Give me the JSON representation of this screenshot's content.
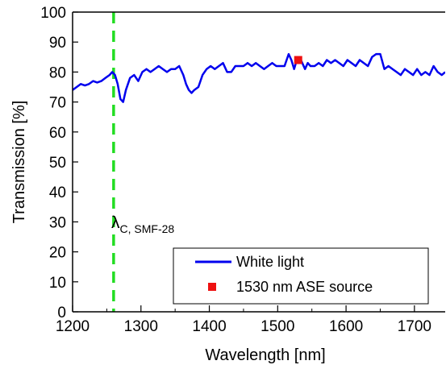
{
  "chart_data": {
    "type": "line",
    "title": "",
    "xlabel": "Wavelength [nm]",
    "ylabel": "Transmission [%]",
    "xlim": [
      1200,
      1745
    ],
    "ylim": [
      0,
      100
    ],
    "xticks": [
      1200,
      1300,
      1400,
      1500,
      1600,
      1700
    ],
    "yticks": [
      0,
      10,
      20,
      30,
      40,
      50,
      60,
      70,
      80,
      90,
      100
    ],
    "grid": false,
    "legend_position": "bottom-right",
    "series": [
      {
        "name": "White light",
        "kind": "line",
        "color": "#0000ee",
        "x": [
          1200,
          1206,
          1212,
          1218,
          1224,
          1230,
          1236,
          1242,
          1248,
          1254,
          1258,
          1262,
          1266,
          1270,
          1274,
          1278,
          1284,
          1290,
          1296,
          1302,
          1308,
          1314,
          1320,
          1326,
          1332,
          1338,
          1344,
          1350,
          1356,
          1362,
          1366,
          1370,
          1374,
          1378,
          1384,
          1390,
          1396,
          1402,
          1408,
          1414,
          1420,
          1426,
          1432,
          1438,
          1444,
          1450,
          1456,
          1462,
          1468,
          1474,
          1480,
          1486,
          1492,
          1498,
          1504,
          1510,
          1516,
          1520,
          1524,
          1528,
          1532,
          1536,
          1540,
          1544,
          1548,
          1554,
          1560,
          1566,
          1572,
          1578,
          1584,
          1590,
          1596,
          1602,
          1608,
          1614,
          1620,
          1626,
          1632,
          1638,
          1644,
          1650,
          1656,
          1662,
          1668,
          1674,
          1680,
          1686,
          1692,
          1698,
          1704,
          1710,
          1716,
          1722,
          1728,
          1734,
          1740,
          1745
        ],
        "y": [
          74,
          75,
          76,
          75.5,
          76,
          77,
          76.5,
          77,
          78,
          79,
          80,
          79,
          76,
          71,
          70,
          74,
          78,
          79,
          77,
          80,
          81,
          80,
          81,
          82,
          81,
          80,
          81,
          81,
          82,
          79,
          76,
          74,
          73,
          74,
          75,
          79,
          81,
          82,
          81,
          82,
          83,
          80,
          80,
          82,
          82,
          82,
          83,
          82,
          83,
          82,
          81,
          82,
          83,
          82,
          82,
          82,
          86,
          84,
          81,
          84,
          85,
          83,
          81,
          83,
          82,
          82,
          83,
          82,
          84,
          83,
          84,
          83,
          82,
          84,
          83,
          82,
          84,
          83,
          82,
          85,
          86,
          86,
          81,
          82,
          81,
          80,
          79,
          81,
          80,
          79,
          81,
          79,
          80,
          79,
          82,
          80,
          79,
          80
        ]
      },
      {
        "name": "1530 nm ASE source",
        "kind": "scatter",
        "color": "#ee1111",
        "x": [
          1530
        ],
        "y": [
          84
        ]
      }
    ],
    "annotations": [
      {
        "kind": "vline",
        "x": 1260,
        "color": "#22dd22",
        "style": "dashed",
        "label_main": "λ",
        "label_sub": "C, SMF-28"
      }
    ]
  }
}
